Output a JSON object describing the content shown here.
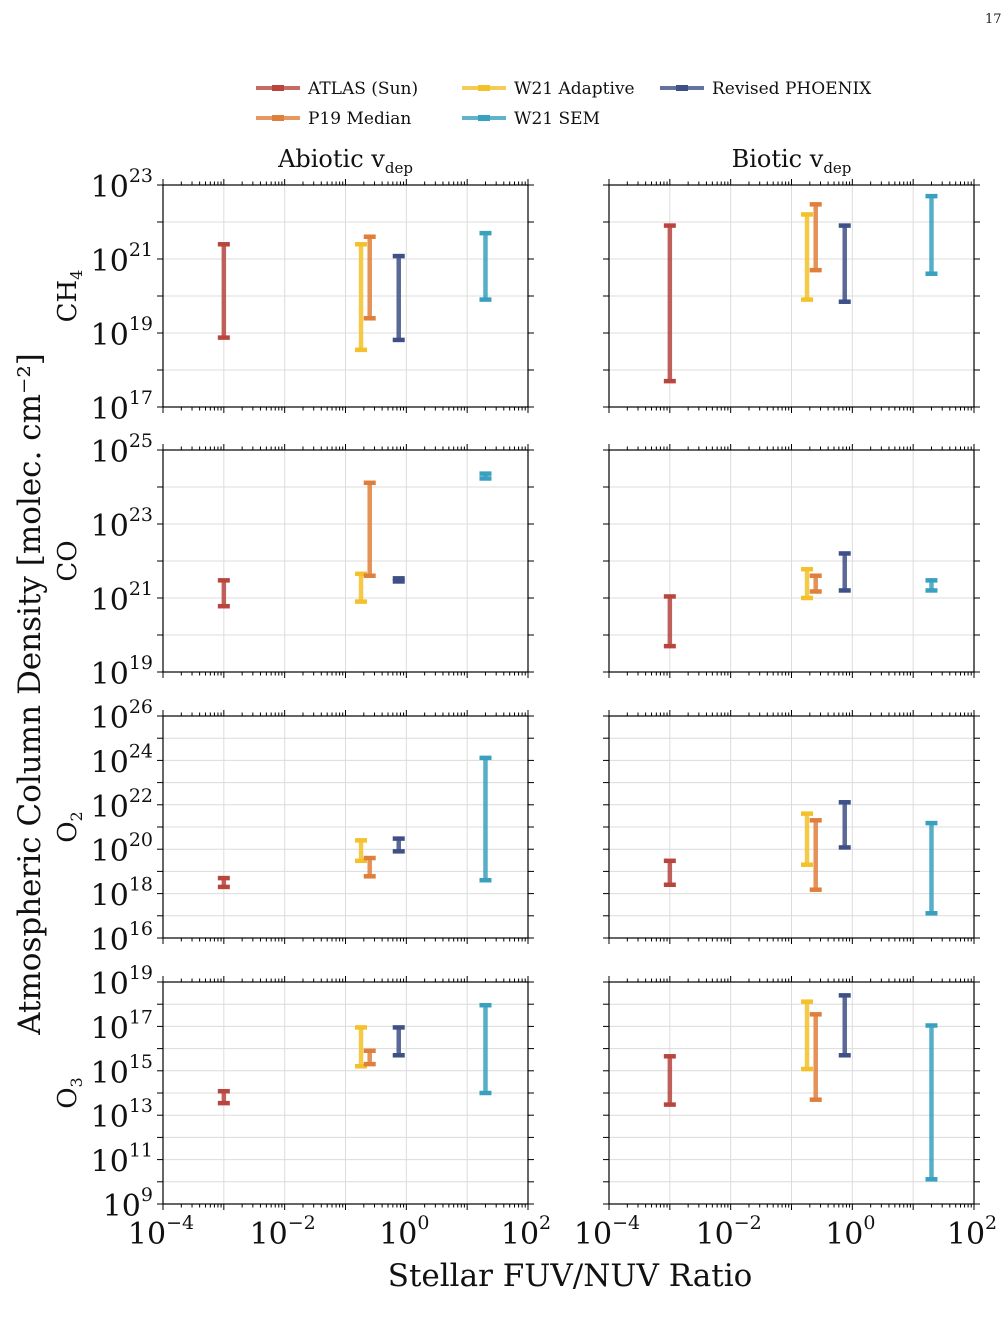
{
  "page": {
    "number": "17"
  },
  "chart_data": {
    "type": "errorbar-range",
    "xlabel": "Stellar FUV/NUV Ratio",
    "ylabel": "Atmospheric Column Density [molec. cm⁻²]",
    "x_scale": "log",
    "xlim_exp": [
      -4,
      2
    ],
    "x_tick_exps": [
      -4,
      -2,
      0,
      2
    ],
    "columns": [
      {
        "title_main": "Abiotic v",
        "title_sub": "dep"
      },
      {
        "title_main": "Biotic v",
        "title_sub": "dep"
      }
    ],
    "series": [
      {
        "name": "ATLAS (Sun)",
        "color": "#b8463f",
        "x": 0.001
      },
      {
        "name": "P19 Median",
        "color": "#e07f3c",
        "x": 0.25
      },
      {
        "name": "W21 Adaptive",
        "color": "#f4c12a",
        "x": 0.18
      },
      {
        "name": "W21 SEM",
        "color": "#3aa0bf",
        "x": 20
      },
      {
        "name": "Revised PHOENIX",
        "color": "#3e5086",
        "x": 0.75
      }
    ],
    "rows": [
      {
        "label": "CH",
        "label_sub": "4",
        "ylim_exp": [
          17,
          23
        ],
        "y_tick_exps": [
          17,
          19,
          21,
          23
        ],
        "abiotic": [
          {
            "series": "ATLAS (Sun)",
            "low": 7.5e+18,
            "high": 2.5e+21
          },
          {
            "series": "W21 Adaptive",
            "low": 3.5e+18,
            "high": 2.5e+21
          },
          {
            "series": "P19 Median",
            "low": 2.5e+19,
            "high": 4e+21
          },
          {
            "series": "Revised PHOENIX",
            "low": 6.5e+18,
            "high": 1.2e+21
          },
          {
            "series": "W21 SEM",
            "low": 8e+19,
            "high": 5e+21
          }
        ],
        "biotic": [
          {
            "series": "ATLAS (Sun)",
            "low": 5e+17,
            "high": 8e+21
          },
          {
            "series": "W21 Adaptive",
            "low": 8e+19,
            "high": 1.6e+22
          },
          {
            "series": "P19 Median",
            "low": 5e+20,
            "high": 3e+22
          },
          {
            "series": "Revised PHOENIX",
            "low": 7e+19,
            "high": 8e+21
          },
          {
            "series": "W21 SEM",
            "low": 4e+20,
            "high": 5e+22
          }
        ]
      },
      {
        "label": "CO",
        "label_sub": "",
        "ylim_exp": [
          19,
          25
        ],
        "y_tick_exps": [
          19,
          21,
          23,
          25
        ],
        "abiotic": [
          {
            "series": "ATLAS (Sun)",
            "low": 6e+20,
            "high": 3e+21
          },
          {
            "series": "W21 Adaptive",
            "low": 8e+20,
            "high": 4.5e+21
          },
          {
            "series": "P19 Median",
            "low": 4e+21,
            "high": 1.3e+24
          },
          {
            "series": "Revised PHOENIX",
            "low": 2.8e+21,
            "high": 3.4e+21
          },
          {
            "series": "W21 SEM",
            "low": 1.7e+24,
            "high": 2.3e+24
          }
        ],
        "biotic": [
          {
            "series": "ATLAS (Sun)",
            "low": 5e+19,
            "high": 1.1e+21
          },
          {
            "series": "W21 Adaptive",
            "low": 1e+21,
            "high": 6e+21
          },
          {
            "series": "P19 Median",
            "low": 1.5e+21,
            "high": 4e+21
          },
          {
            "series": "Revised PHOENIX",
            "low": 1.6e+21,
            "high": 1.6e+22
          },
          {
            "series": "W21 SEM",
            "low": 1.6e+21,
            "high": 3e+21
          }
        ]
      },
      {
        "label": "O",
        "label_sub": "2",
        "ylim_exp": [
          16,
          26
        ],
        "y_tick_exps": [
          16,
          18,
          20,
          22,
          24,
          26
        ],
        "abiotic": [
          {
            "series": "ATLAS (Sun)",
            "low": 2e+18,
            "high": 5e+18
          },
          {
            "series": "W21 Adaptive",
            "low": 3e+19,
            "high": 2.5e+20
          },
          {
            "series": "P19 Median",
            "low": 6e+18,
            "high": 4e+19
          },
          {
            "series": "Revised PHOENIX",
            "low": 8e+19,
            "high": 3e+20
          },
          {
            "series": "W21 SEM",
            "low": 4e+18,
            "high": 1.3e+24
          }
        ],
        "biotic": [
          {
            "series": "ATLAS (Sun)",
            "low": 2.5e+18,
            "high": 3e+19
          },
          {
            "series": "W21 Adaptive",
            "low": 2e+19,
            "high": 4e+21
          },
          {
            "series": "P19 Median",
            "low": 1.5e+18,
            "high": 2e+21
          },
          {
            "series": "Revised PHOENIX",
            "low": 1.2e+20,
            "high": 1.3e+22
          },
          {
            "series": "W21 SEM",
            "low": 1.3e+17,
            "high": 1.5e+21
          }
        ]
      },
      {
        "label": "O",
        "label_sub": "3",
        "ylim_exp": [
          9,
          19
        ],
        "y_tick_exps": [
          9,
          11,
          13,
          15,
          17,
          19
        ],
        "abiotic": [
          {
            "series": "ATLAS (Sun)",
            "low": 35000000000000.0,
            "high": 120000000000000.0
          },
          {
            "series": "W21 Adaptive",
            "low": 1600000000000000.0,
            "high": 9e+16
          },
          {
            "series": "P19 Median",
            "low": 2000000000000000.0,
            "high": 8000000000000000.0
          },
          {
            "series": "Revised PHOENIX",
            "low": 5000000000000000.0,
            "high": 9e+16
          },
          {
            "series": "W21 SEM",
            "low": 100000000000000.0,
            "high": 9e+17
          }
        ],
        "biotic": [
          {
            "series": "ATLAS (Sun)",
            "low": 30000000000000.0,
            "high": 4500000000000000.0
          },
          {
            "series": "W21 Adaptive",
            "low": 1200000000000000.0,
            "high": 1.3e+18
          },
          {
            "series": "P19 Median",
            "low": 50000000000000.0,
            "high": 3.5e+17
          },
          {
            "series": "Revised PHOENIX",
            "low": 5000000000000000.0,
            "high": 2.5e+18
          },
          {
            "series": "W21 SEM",
            "low": 13000000000.0,
            "high": 1.1e+17
          }
        ]
      }
    ],
    "legend": {
      "position": "top-center",
      "order": [
        "ATLAS (Sun)",
        "W21 Adaptive",
        "Revised PHOENIX",
        "P19 Median",
        "W21 SEM"
      ]
    },
    "grid": true
  }
}
